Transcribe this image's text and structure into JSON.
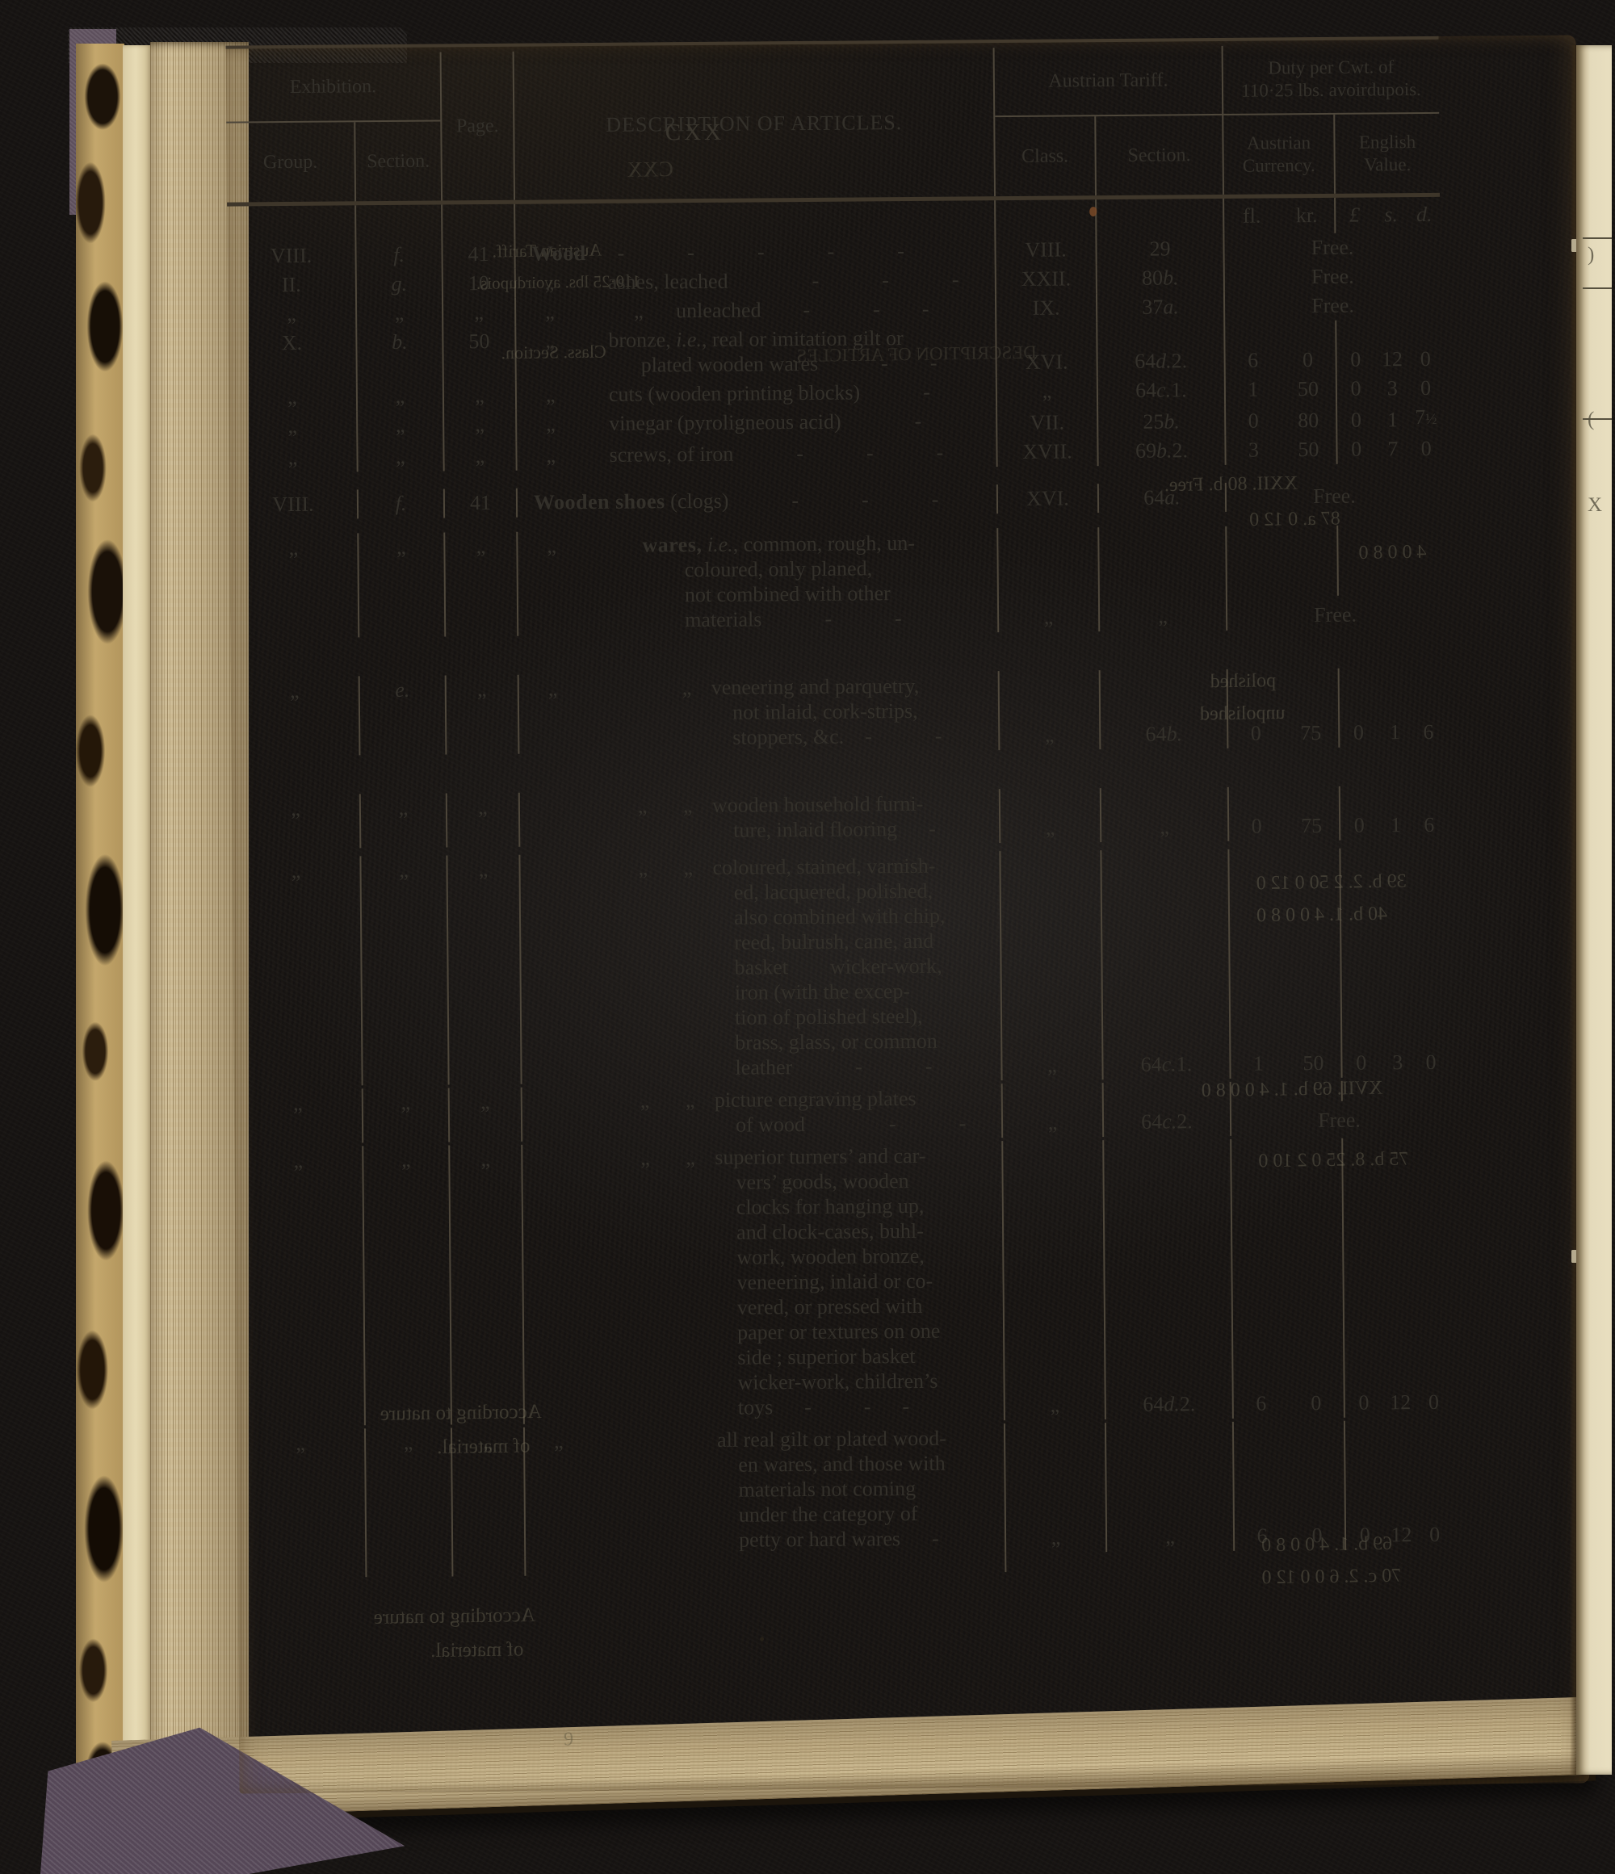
{
  "page_number": "CXX",
  "colors": {
    "paper": "#ece2c2",
    "ink": "#33302a",
    "rule": "#4d463a"
  },
  "table": {
    "headers": {
      "exhibition": "Exhibition.",
      "group": "Group.",
      "section": "Section.",
      "page": "Page.",
      "description": "DESCRIPTION OF ARTICLES.",
      "austrian_tariff": "Austrian Tariff.",
      "class": "Class.",
      "tariff_section": "Section.",
      "duty": "Duty per Cwt. of\n110·25 lbs. avoirdupois.",
      "austrian_currency": "Austrian\nCurrency.",
      "english_value": "English\nValue."
    },
    "units": {
      "fl": "fl.",
      "kr": "kr.",
      "pound": "£",
      "s": "s.",
      "d": "d."
    },
    "free_label": "Free.",
    "rows": [
      {
        "group": "VIII.",
        "section": "f.",
        "page": "41",
        "desc": {
          "slots": [],
          "lv": "lv0",
          "bold": "Wood",
          "text": "  -   -   -   -   -"
        },
        "class": "VIII.",
        "tsection": "29",
        "duty": {
          "free": true
        }
      },
      {
        "group": "II.",
        "section": "g.",
        "page": "10",
        "desc": {
          "slots": [
            "sA"
          ],
          "lv": "lv1",
          "text": "ashes, leached    -   -   -"
        },
        "class": "XXII.",
        "tsection": "80 b.",
        "duty": {
          "free": true
        }
      },
      {
        "group": "„",
        "section": "„",
        "page": "„",
        "desc": {
          "slots": [
            "sA",
            "sB"
          ],
          "lv": "lv1b",
          "text": "unleached  -   -  -"
        },
        "class": "IX.",
        "tsection": "37 a.",
        "duty": {
          "free": true
        }
      },
      {
        "group": "X.",
        "section": "b.",
        "page": "50",
        "desc": {
          "slots": [
            "sA"
          ],
          "lv": "lv1",
          "text": "bronze, i.e., real or imitation gilt or\nplated wooden wares   -  -"
        },
        "class": "XVI.",
        "tsection": "64 d. 2.",
        "duty": {
          "fl": "6",
          "kr": "0",
          "l": "0",
          "s": "12",
          "d": "0"
        }
      },
      {
        "group": "„",
        "section": "„",
        "page": "„",
        "desc": {
          "slots": [
            "sA"
          ],
          "lv": "lv1",
          "text": "cuts (wooden printing blocks)   -"
        },
        "class": "„",
        "tsection": "64 c. 1.",
        "duty": {
          "fl": "1",
          "kr": "50",
          "l": "0",
          "s": "3",
          "d": "0"
        }
      },
      {
        "group": "„",
        "section": "„",
        "page": "„",
        "desc": {
          "slots": [
            "sA"
          ],
          "lv": "lv1",
          "text": "vinegar (pyroligneous acid)    -"
        },
        "class": "VII.",
        "tsection": "25 b.",
        "duty": {
          "fl": "0",
          "kr": "80",
          "l": "0",
          "s": "1",
          "d": "7½"
        }
      },
      {
        "group": "„",
        "section": "„",
        "page": "„",
        "desc": {
          "slots": [
            "sA"
          ],
          "lv": "lv1",
          "text": "screws, of iron   -   -   -"
        },
        "class": "XVII.",
        "tsection": "69 b. 2.",
        "duty": {
          "fl": "3",
          "kr": "50",
          "l": "0",
          "s": "7",
          "d": "0"
        }
      },
      {
        "group": "VIII.",
        "section": "f.",
        "page": "41",
        "desc": {
          "slots": [],
          "lv": "lv0",
          "bold": "Wooden shoes",
          "text": " (clogs)   -   -   -"
        },
        "class": "XVI.",
        "tsection": "64 a.",
        "duty": {
          "free": true
        }
      },
      {
        "group": "„",
        "section": "„",
        "page": "„",
        "desc": {
          "slots": [
            "sA"
          ],
          "lv": "lv1c",
          "bold": "wares,",
          "text": " i.e., common, rough, un-\ncoloured, only planed,\nnot combined with other\nmaterials   -   -"
        },
        "class": "„",
        "tsection": "„",
        "duty": {
          "free": true
        }
      },
      {
        "group": "„",
        "section": "e.",
        "page": "„",
        "desc": {
          "slots": [
            "sA",
            "sC"
          ],
          "lv": "lv2",
          "text": "veneering and parquetry,\nnot inlaid, cork-strips,\nstoppers, &c. -   -"
        },
        "class": "„",
        "tsection": "64 b.",
        "duty": {
          "fl": "0",
          "kr": "75",
          "l": "0",
          "s": "1",
          "d": "6"
        }
      },
      {
        "group": "„",
        "section": "„",
        "page": "„",
        "desc": {
          "slots": [
            "sB",
            "sC"
          ],
          "lv": "lv2",
          "text": "wooden household furni-\nture, inlaid flooring  -"
        },
        "class": "„",
        "tsection": "„",
        "duty": {
          "fl": "0",
          "kr": "75",
          "l": "0",
          "s": "1",
          "d": "6"
        }
      },
      {
        "group": "„",
        "section": "„",
        "page": "„",
        "desc": {
          "slots": [
            "sB",
            "sC"
          ],
          "lv": "lv2",
          "text": "coloured, stained, varnish-\ned, lacquered, polished,\nalso combined with chip,\nreed, bulrush, cane, and\nbasket  wicker-work,\niron (with the excep-\ntion of polished steel),\nbrass, glass, or common\nleather   -   -"
        },
        "class": "„",
        "tsection": "64 c. 1.",
        "duty": {
          "fl": "1",
          "kr": "50",
          "l": "0",
          "s": "3",
          "d": "0"
        }
      },
      {
        "group": "„",
        "section": "„",
        "page": "„",
        "desc": {
          "slots": [
            "sB",
            "sC"
          ],
          "lv": "lv2",
          "text": "picture engraving plates\nof wood    -   -"
        },
        "class": "„",
        "tsection": "64 c. 2.",
        "duty": {
          "free": true
        }
      },
      {
        "group": "„",
        "section": "„",
        "page": "„",
        "desc": {
          "slots": [
            "sB",
            "sC"
          ],
          "lv": "lv2",
          "text": "superior turners’ and car-\nvers’ goods, wooden\nclocks for hanging up,\nand clock-cases, buhl-\nwork, wooden bronze,\nveneering, inlaid or co-\nvered, or pressed with\npaper or textures on one\nside ; superior basket\nwicker-work, children’s\ntoys  -   -  -"
        },
        "class": "„",
        "tsection": "64 d. 2.",
        "duty": {
          "fl": "6",
          "kr": "0",
          "l": "0",
          "s": "12",
          "d": "0"
        }
      },
      {
        "group": "„",
        "section": "„",
        "page": "„",
        "desc": {
          "slots": [
            "sA"
          ],
          "lv": "lv2",
          "text": "all real gilt or plated wood-\nen wares, and those with\nmaterials not coming\nunder the category of\npetty or hard wares  -"
        },
        "class": "„",
        "tsection": "„",
        "duty": {
          "fl": "6",
          "kr": "0",
          "l": "0",
          "s": "12",
          "d": "0"
        }
      }
    ]
  },
  "ghost_fragments": [
    "Austrian Tariff.",
    "110·25 lbs. avoirdupois.",
    "Class. Section.",
    "DESCRIPTION OF ARTICLES.",
    "XXII. 80 b. Free.",
    "87 a. 0 12 0",
    "4 0 0 8 0",
    "polished",
    "unpolished",
    "39 b. 2. 2 50 0 12 0",
    "40 b. 1. 4 0 0 8 0",
    "XVII. 69 b. 1. 4 0 0 8 0",
    "According to nature",
    "of material.",
    "75 b. 8. 25 0 2 10 0",
    "According to nature",
    "of material.",
    "CXX",
    "69 b. 1. 4 0 0 8 0",
    "70 c. 2. 6 0 0 12 0"
  ],
  "gutter_fragments": [
    ")",
    "(",
    "X"
  ],
  "footer_mark": "9"
}
